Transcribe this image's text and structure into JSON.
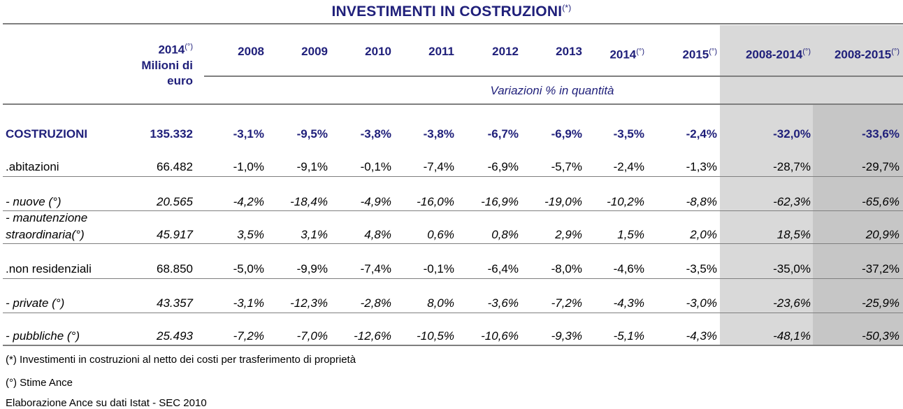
{
  "title": "INVESTIMENTI IN COSTRUZIONI",
  "title_sup": "(*)",
  "unit_header": {
    "year": "2014",
    "year_sup": "(°)",
    "line2": "Milioni di",
    "line3": "euro"
  },
  "variation_label": "Variazioni % in quantità",
  "chart_data": {
    "type": "table",
    "columns": [
      {
        "label": "2008",
        "sup": ""
      },
      {
        "label": "2009",
        "sup": ""
      },
      {
        "label": "2010",
        "sup": ""
      },
      {
        "label": "2011",
        "sup": ""
      },
      {
        "label": "2012",
        "sup": ""
      },
      {
        "label": "2013",
        "sup": ""
      },
      {
        "label": "2014",
        "sup": "(°)"
      },
      {
        "label": "2015",
        "sup": "(°)"
      },
      {
        "label": "2008-2014",
        "sup": "(°)"
      },
      {
        "label": "2008-2015",
        "sup": "(°)"
      }
    ],
    "rows": [
      {
        "label": "COSTRUZIONI",
        "style": "total",
        "value": "135.332",
        "cells": [
          "-3,1%",
          "-9,5%",
          "-3,8%",
          "-3,8%",
          "-6,7%",
          "-6,9%",
          "-3,5%",
          "-2,4%",
          "-32,0%",
          "-33,6%"
        ]
      },
      {
        "label": ".abitazioni",
        "style": "normal",
        "value": "66.482",
        "cells": [
          "-1,0%",
          "-9,1%",
          "-0,1%",
          "-7,4%",
          "-6,9%",
          "-5,7%",
          "-2,4%",
          "-1,3%",
          "-28,7%",
          "-29,7%"
        ]
      },
      {
        "label": " - nuove (°)",
        "style": "italic",
        "value": "20.565",
        "cells": [
          "-4,2%",
          "-18,4%",
          "-4,9%",
          "-16,0%",
          "-16,9%",
          "-19,0%",
          "-10,2%",
          "-8,8%",
          "-62,3%",
          "-65,6%"
        ]
      },
      {
        "label": " - manutenzione",
        "label2": "straordinaria(°)",
        "style": "italic",
        "value": "45.917",
        "cells": [
          "3,5%",
          "3,1%",
          "4,8%",
          "0,6%",
          "0,8%",
          "2,9%",
          "1,5%",
          "2,0%",
          "18,5%",
          "20,9%"
        ]
      },
      {
        "label": ".non residenziali",
        "style": "normal",
        "value": "68.850",
        "cells": [
          "-5,0%",
          "-9,9%",
          "-7,4%",
          "-0,1%",
          "-6,4%",
          "-8,0%",
          "-4,6%",
          "-3,5%",
          "-35,0%",
          "-37,2%"
        ]
      },
      {
        "label": " - private (°)",
        "style": "italic",
        "value": "43.357",
        "cells": [
          "-3,1%",
          "-12,3%",
          "-2,8%",
          "8,0%",
          "-3,6%",
          "-7,2%",
          "-4,3%",
          "-3,0%",
          "-23,6%",
          "-25,9%"
        ]
      },
      {
        "label": " - pubbliche (°)",
        "style": "italic",
        "value": "25.493",
        "cells": [
          "-7,2%",
          "-7,0%",
          "-12,6%",
          "-10,5%",
          "-10,6%",
          "-9,3%",
          "-5,1%",
          "-4,3%",
          "-48,1%",
          "-50,3%"
        ]
      }
    ]
  },
  "footnotes": [
    "(*) Investimenti in costruzioni al netto dei costi per trasferimento di proprietà",
    "(°) Stime Ance",
    "Elaborazione Ance su dati Istat - SEC 2010"
  ],
  "colors": {
    "header_blue": "#1f1f7a",
    "shade_light": "#d9d9d9",
    "shade_dark": "#c6c6c6",
    "rule_gray": "#7f7f7f"
  }
}
